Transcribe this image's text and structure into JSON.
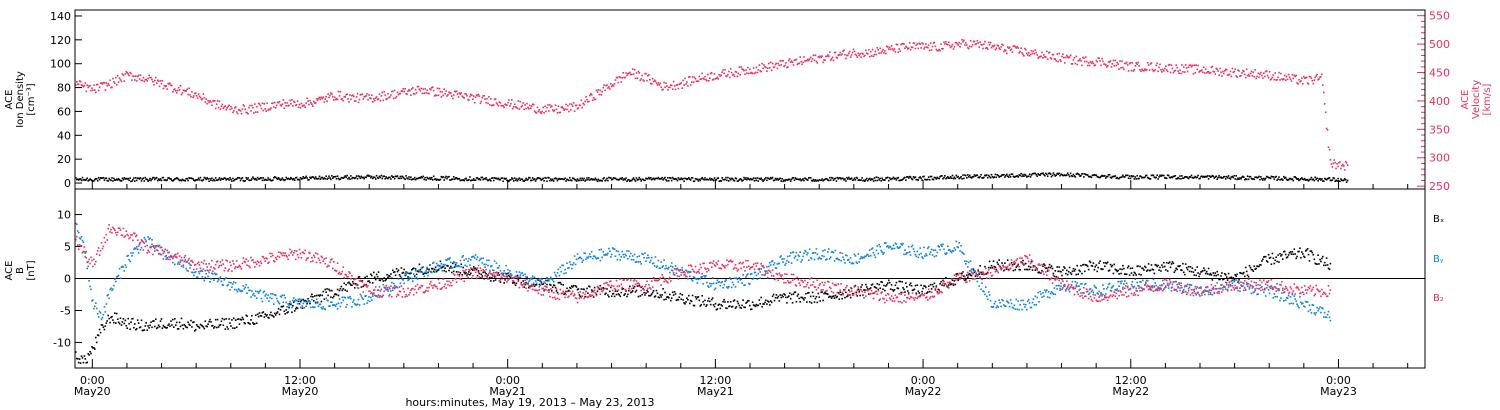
{
  "colors": {
    "density": "#000000",
    "velocity": "#e8315f",
    "bx": "#000000",
    "by": "#0c83e4",
    "bz": "#e8315f"
  },
  "time": {
    "xlabel": "hours:minutes, May 19, 2013 – May 23, 2013",
    "ticks": [
      {
        "hours": 0,
        "time": "0:00",
        "date": "May20"
      },
      {
        "hours": 12,
        "time": "12:00",
        "date": "May20"
      },
      {
        "hours": 24,
        "time": "0:00",
        "date": "May21"
      },
      {
        "hours": 36,
        "time": "12:00",
        "date": "May21"
      },
      {
        "hours": 48,
        "time": "0:00",
        "date": "May22"
      },
      {
        "hours": 60,
        "time": "12:00",
        "date": "May22"
      },
      {
        "hours": 72,
        "time": "0:00",
        "date": "May23"
      }
    ],
    "range_hours": [
      -1,
      77
    ]
  },
  "chart_data": [
    {
      "type": "scatter",
      "ylabel_left": [
        "ACE",
        "Ion Density",
        "[cm⁻³]"
      ],
      "ylabel_right": [
        "ACE",
        "Velocity",
        "[km/s]"
      ],
      "ylim_left": [
        -5,
        145
      ],
      "ylim_right": [
        245,
        560
      ],
      "left_ticks": [
        0,
        20,
        40,
        60,
        80,
        100,
        120,
        140
      ],
      "right_ticks": [
        250,
        300,
        350,
        400,
        450,
        500,
        550
      ],
      "series": [
        {
          "name": "Ion Density",
          "axis": "left",
          "x_hours": [
            -1,
            2,
            5,
            8,
            12,
            16,
            20,
            24,
            28,
            32,
            36,
            40,
            44,
            48,
            52,
            56,
            60,
            64,
            68,
            71.5,
            72.5
          ],
          "values": [
            3,
            3,
            3,
            3,
            4,
            5,
            4,
            3,
            3,
            3,
            3,
            3,
            3,
            4,
            6,
            7,
            5,
            5,
            4,
            3,
            2
          ]
        },
        {
          "name": "Velocity",
          "axis": "right",
          "x_hours": [
            -1,
            0,
            1,
            2,
            3,
            4,
            5,
            6,
            7,
            8,
            9,
            10,
            11,
            12,
            13,
            14,
            15,
            16,
            17,
            18,
            19,
            20,
            21,
            22,
            23,
            24,
            25,
            26,
            27,
            28,
            29,
            30,
            31,
            32,
            33,
            34,
            35,
            36,
            37,
            38,
            39,
            40,
            41,
            42,
            43,
            44,
            45,
            46,
            47,
            48,
            49,
            50,
            51,
            52,
            53,
            54,
            55,
            56,
            57,
            58,
            59,
            60,
            61,
            62,
            63,
            64,
            65,
            66,
            67,
            68,
            69,
            70,
            71,
            71.5,
            72.5
          ],
          "values": [
            430,
            420,
            430,
            445,
            440,
            430,
            420,
            410,
            395,
            385,
            385,
            390,
            395,
            395,
            400,
            410,
            405,
            405,
            410,
            415,
            420,
            415,
            410,
            405,
            400,
            395,
            390,
            385,
            385,
            390,
            410,
            430,
            450,
            440,
            425,
            430,
            440,
            445,
            450,
            455,
            460,
            465,
            470,
            475,
            480,
            485,
            485,
            490,
            495,
            495,
            495,
            500,
            500,
            495,
            490,
            485,
            480,
            475,
            470,
            470,
            465,
            460,
            460,
            458,
            456,
            455,
            452,
            450,
            448,
            445,
            440,
            435,
            440,
            290,
            285
          ]
        }
      ]
    },
    {
      "type": "scatter",
      "ylabel_left": [
        "ACE",
        "B",
        "[nT]"
      ],
      "ylim": [
        -14,
        14
      ],
      "left_ticks": [
        -10,
        -5,
        0,
        5,
        10
      ],
      "zero_line": true,
      "legend": [
        "Bₓ",
        "Bᵧ",
        "B₂"
      ],
      "series": [
        {
          "name": "Bx",
          "x_hours": [
            -1,
            -0.5,
            0,
            0.5,
            1,
            2,
            3,
            4,
            5,
            6,
            8,
            10,
            12,
            14,
            16,
            18,
            20,
            22,
            24,
            26,
            28,
            30,
            32,
            34,
            36,
            38,
            40,
            42,
            44,
            46,
            48,
            50,
            52,
            54,
            56,
            58,
            60,
            62,
            64,
            66,
            68,
            70,
            71.5
          ],
          "values": [
            -12,
            -13,
            -11,
            -8,
            -6,
            -7,
            -7.5,
            -7,
            -7,
            -7.5,
            -7,
            -6,
            -4,
            -2,
            0,
            1,
            2,
            1,
            0,
            -1,
            -2,
            -2,
            -2,
            -3,
            -4,
            -4,
            -3,
            -3,
            -2,
            -1,
            -2,
            0,
            2,
            2,
            1,
            2,
            1,
            2,
            1,
            0,
            3,
            4,
            2
          ]
        },
        {
          "name": "By",
          "x_hours": [
            -1,
            -0.5,
            0,
            0.5,
            1,
            2,
            3,
            4,
            6,
            8,
            10,
            12,
            14,
            16,
            18,
            20,
            22,
            24,
            26,
            28,
            30,
            32,
            34,
            36,
            38,
            40,
            42,
            44,
            46,
            48,
            50,
            52,
            54,
            56,
            58,
            60,
            62,
            64,
            66,
            68,
            70,
            71.5
          ],
          "values": [
            8,
            5,
            -4,
            -6,
            -2,
            3,
            6,
            4,
            1,
            -1,
            -3,
            -4,
            -4,
            -3,
            0,
            2,
            3,
            1,
            -1,
            3,
            4,
            3,
            1,
            -1,
            0,
            3,
            4,
            3,
            5,
            4,
            5,
            -4,
            -4,
            -1,
            -2,
            -1,
            -1,
            -2,
            -1,
            -2,
            -4,
            -6
          ]
        },
        {
          "name": "Bz",
          "x_hours": [
            -1,
            -0.5,
            0,
            0.5,
            1,
            2,
            3,
            4,
            6,
            8,
            10,
            12,
            14,
            16,
            18,
            20,
            22,
            24,
            26,
            28,
            30,
            32,
            34,
            36,
            38,
            40,
            42,
            44,
            46,
            48,
            50,
            52,
            54,
            56,
            58,
            60,
            62,
            64,
            66,
            68,
            70,
            71.5
          ],
          "values": [
            6,
            4,
            2,
            5,
            8,
            7,
            5,
            4,
            2,
            2,
            3,
            4,
            2,
            -2,
            -2,
            -1,
            1,
            0,
            -2,
            -3,
            -1,
            -1,
            1,
            2,
            2,
            0,
            -1,
            -2,
            -3,
            -3,
            0,
            1,
            3,
            -1,
            -3,
            -2,
            -1,
            -2,
            -1,
            -1,
            -2,
            -2
          ]
        }
      ]
    }
  ]
}
